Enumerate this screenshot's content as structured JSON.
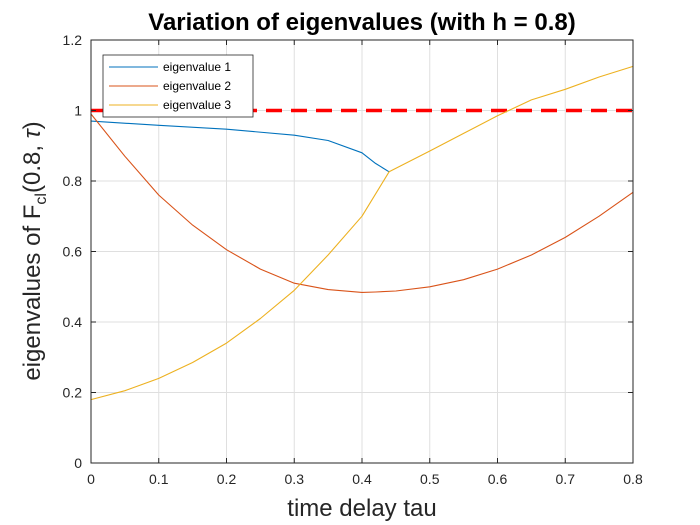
{
  "chart_data": {
    "type": "line",
    "title": "Variation of eigenvalues (with h = 0.8)",
    "xlabel": "time delay tau",
    "ylabel": {
      "prefix": "eigenvalues of F",
      "subscript": "cl",
      "suffix": "(0.8, ",
      "symbol": "τ",
      "close": ")"
    },
    "xlim": [
      0,
      0.8
    ],
    "ylim": [
      0,
      1.2
    ],
    "xticks": [
      0,
      0.1,
      0.2,
      0.3,
      0.4,
      0.5,
      0.6,
      0.7,
      0.8
    ],
    "xtick_labels": [
      "0",
      "0.1",
      "0.2",
      "0.3",
      "0.4",
      "0.5",
      "0.6",
      "0.7",
      "0.8"
    ],
    "yticks": [
      0,
      0.2,
      0.4,
      0.6,
      0.8,
      1,
      1.2
    ],
    "ytick_labels": [
      "0",
      "0.2",
      "0.4",
      "0.6",
      "0.8",
      "1",
      "1.2"
    ],
    "grid": true,
    "legend_position": "top-left",
    "reference_line": {
      "y": 1,
      "color": "#ff0000",
      "style": "dashed"
    },
    "series": [
      {
        "name": "eigenvalue 1",
        "color": "#0072bd",
        "points": [
          [
            0,
            0.97
          ],
          [
            0.1,
            0.958
          ],
          [
            0.2,
            0.947
          ],
          [
            0.3,
            0.93
          ],
          [
            0.35,
            0.915
          ],
          [
            0.4,
            0.88
          ],
          [
            0.42,
            0.85
          ],
          [
            0.44,
            0.826
          ]
        ]
      },
      {
        "name": "eigenvalue 2",
        "color": "#d95319",
        "points": [
          [
            0,
            0.99
          ],
          [
            0.05,
            0.87
          ],
          [
            0.1,
            0.76
          ],
          [
            0.15,
            0.675
          ],
          [
            0.2,
            0.605
          ],
          [
            0.25,
            0.55
          ],
          [
            0.3,
            0.51
          ],
          [
            0.35,
            0.492
          ],
          [
            0.4,
            0.484
          ],
          [
            0.42,
            0.485
          ],
          [
            0.45,
            0.488
          ],
          [
            0.5,
            0.5
          ],
          [
            0.55,
            0.52
          ],
          [
            0.6,
            0.55
          ],
          [
            0.65,
            0.59
          ],
          [
            0.7,
            0.64
          ],
          [
            0.75,
            0.7
          ],
          [
            0.8,
            0.768
          ]
        ]
      },
      {
        "name": "eigenvalue 3",
        "color": "#edb120",
        "points": [
          [
            0,
            0.18
          ],
          [
            0.05,
            0.205
          ],
          [
            0.1,
            0.24
          ],
          [
            0.15,
            0.285
          ],
          [
            0.2,
            0.34
          ],
          [
            0.25,
            0.41
          ],
          [
            0.3,
            0.49
          ],
          [
            0.35,
            0.59
          ],
          [
            0.4,
            0.7
          ],
          [
            0.44,
            0.826
          ],
          [
            0.5,
            0.885
          ],
          [
            0.55,
            0.935
          ],
          [
            0.6,
            0.985
          ],
          [
            0.65,
            1.03
          ],
          [
            0.7,
            1.06
          ],
          [
            0.75,
            1.095
          ],
          [
            0.8,
            1.125
          ]
        ]
      }
    ]
  }
}
